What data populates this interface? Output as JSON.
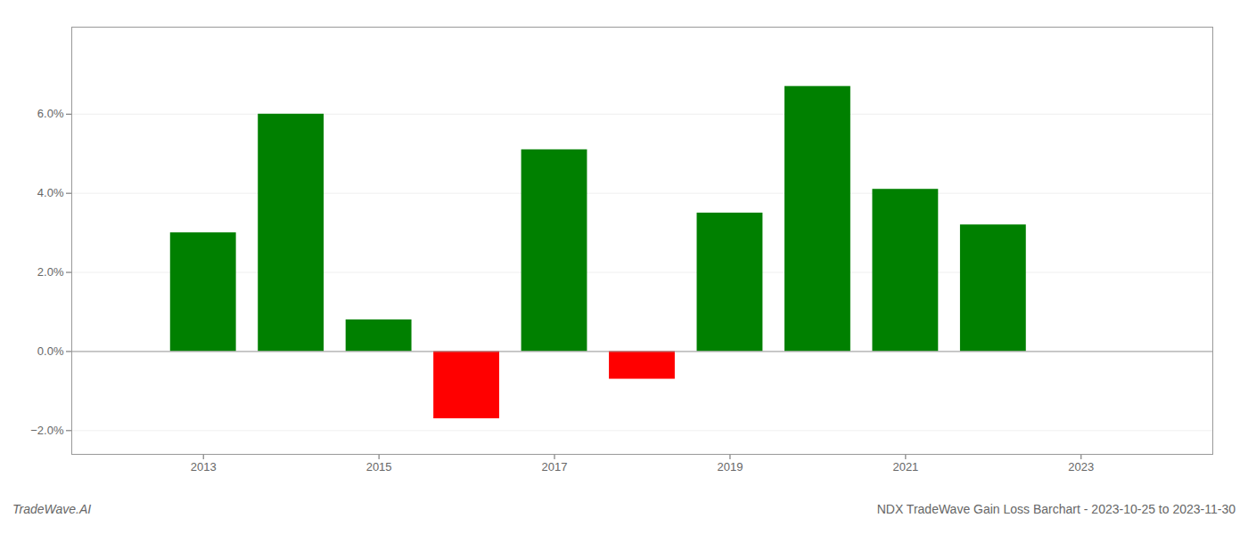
{
  "chart_data": {
    "type": "bar",
    "title": "NDX TradeWave Gain Loss Barchart - 2023-10-25 to 2023-11-30",
    "annotations": [
      "TradeWave.AI"
    ],
    "x": [
      2013,
      2014,
      2015,
      2016,
      2017,
      2018,
      2019,
      2020,
      2021,
      2022
    ],
    "values": [
      0.03,
      0.06,
      0.008,
      -0.017,
      0.051,
      -0.007,
      0.035,
      0.067,
      0.041,
      0.032
    ],
    "colors": [
      "#008000",
      "#008000",
      "#008000",
      "#ff0000",
      "#008000",
      "#ff0000",
      "#008000",
      "#008000",
      "#008000",
      "#008000"
    ],
    "xlim": [
      2011.5,
      2024.5
    ],
    "xticks": [
      2013,
      2015,
      2017,
      2019,
      2021,
      2023
    ],
    "ylim": [
      -0.026,
      0.082
    ],
    "yticks": [
      {
        "value": -0.02,
        "label": "−2.0%"
      },
      {
        "value": 0.0,
        "label": "0.0%"
      },
      {
        "value": 0.02,
        "label": "2.0%"
      },
      {
        "value": 0.04,
        "label": "4.0%"
      },
      {
        "value": 0.06,
        "label": "6.0%"
      }
    ],
    "grid": true
  }
}
